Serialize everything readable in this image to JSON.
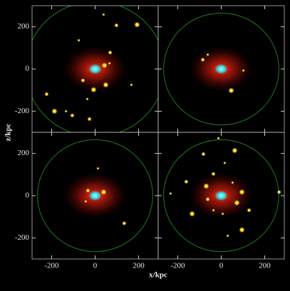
{
  "figure": {
    "xlabel": "x/kpc",
    "ylabel": "z/kpc"
  },
  "chart_data": [
    {
      "type": "scatter",
      "xlim": [
        -290,
        290
      ],
      "ylim": [
        -300,
        300
      ],
      "xticks": [
        -200,
        0,
        200
      ],
      "yticks": [
        -200,
        0,
        200
      ],
      "show_xticklabels": false,
      "show_yticklabels": true,
      "circle_radius": 320,
      "color": "#ffd21a",
      "x": [
        39,
        98,
        193,
        -75,
        69,
        43,
        66,
        -56,
        -7,
        -36,
        -105,
        -187,
        -134,
        -26,
        49,
        167,
        -223
      ],
      "y": [
        258,
        207,
        210,
        136,
        78,
        17,
        27,
        -54,
        -98,
        -142,
        -220,
        -200,
        -200,
        -237,
        -75,
        -75,
        -119
      ]
    },
    {
      "type": "scatter",
      "xlim": [
        -290,
        290
      ],
      "ylim": [
        -300,
        300
      ],
      "xticks": [
        -200,
        0,
        200
      ],
      "yticks": [
        -200,
        0,
        200
      ],
      "show_xticklabels": false,
      "show_yticklabels": false,
      "circle_radius": 265,
      "color": "#ffd21a",
      "x": [
        -62,
        -85,
        46,
        102
      ],
      "y": [
        68,
        44,
        -102,
        -7
      ]
    },
    {
      "type": "scatter",
      "xlim": [
        -290,
        290
      ],
      "ylim": [
        -300,
        300
      ],
      "xticks": [
        -200,
        0,
        200
      ],
      "yticks": [
        -200,
        0,
        200
      ],
      "show_xticklabels": true,
      "show_yticklabels": true,
      "circle_radius": 265,
      "color": "#ffd21a",
      "x": [
        13,
        -33,
        39,
        -43,
        134
      ],
      "y": [
        129,
        24,
        17,
        -27,
        -131
      ]
    },
    {
      "type": "scatter",
      "xlim": [
        -290,
        290
      ],
      "ylim": [
        -300,
        300
      ],
      "xticks": [
        -200,
        0,
        200
      ],
      "yticks": [
        -200,
        0,
        200
      ],
      "show_xticklabels": true,
      "show_yticklabels": false,
      "circle_radius": 265,
      "color": "#ffd21a",
      "x": [
        -13,
        -82,
        62,
        16,
        -36,
        -69,
        52,
        -62,
        72,
        -233,
        -161,
        95,
        7,
        128,
        95,
        30,
        266,
        -134,
        -36
      ],
      "y": [
        272,
        197,
        214,
        155,
        103,
        45,
        62,
        -17,
        -34,
        10,
        66,
        17,
        -86,
        -69,
        -162,
        -190,
        17,
        -86,
        -69
      ]
    }
  ]
}
